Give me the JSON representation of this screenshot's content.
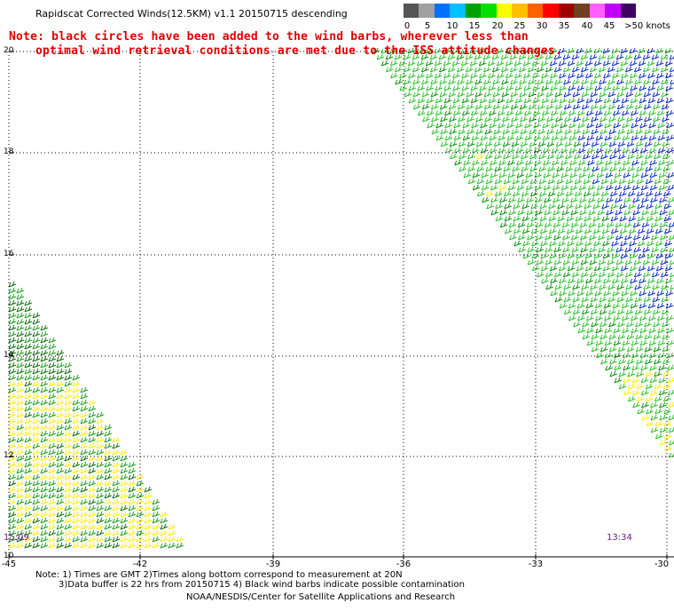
{
  "title": "Rapidscat Corrected Winds(12.5KM) v1.1 20150715 descending",
  "note_line1": "Note: black circles have been added to the wind barbs, wherever less than",
  "note_line2": "optimal wind retrieval conditions are met due to the ISS attitude changes.",
  "legend": {
    "colors": [
      "#555555",
      "#a0a0a0",
      "#0070ff",
      "#00c0ff",
      "#00a000",
      "#00e000",
      "#ffff00",
      "#ffc000",
      "#ff6000",
      "#ff0000",
      "#a00000",
      "#704020",
      "#ff60ff",
      "#c000ff",
      "#400060"
    ],
    "labels": [
      "0",
      "5",
      "10",
      "15",
      "20",
      "25",
      "30",
      "35",
      "40",
      "45",
      ">50 knots"
    ]
  },
  "axes": {
    "x_ticks": [
      "-45",
      "-42",
      "-39",
      "-36",
      "-33",
      "-30"
    ],
    "y_ticks": [
      "20",
      "18",
      "16",
      "14",
      "12",
      "10"
    ],
    "x_range": [
      -45,
      -30
    ],
    "y_range": [
      10,
      20
    ]
  },
  "times": {
    "left": "15:09",
    "right": "13:34"
  },
  "footer": {
    "line1": "Note: 1) Times are GMT 2)Times along bottom correspond to measurement at 20N",
    "line2": "3)Data buffer is 22 hrs from 20150715 4) Black wind barbs indicate possible contamination",
    "line3": "NOAA/NESDIS/Center for Satellite Applications and Research"
  }
}
